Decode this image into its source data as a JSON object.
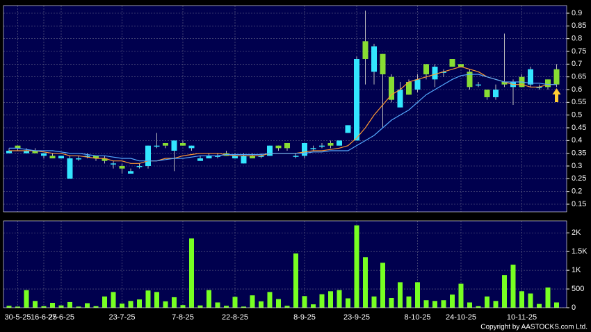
{
  "chart_data": {
    "type": "candlestick",
    "categories": [
      null,
      "30-5-25",
      null,
      null,
      "16-6-25",
      null,
      "27-6-25",
      null,
      null,
      null,
      null,
      null,
      null,
      "23-7-25",
      null,
      null,
      null,
      null,
      null,
      null,
      "7-8-25",
      null,
      null,
      null,
      null,
      null,
      "22-8-25",
      null,
      null,
      null,
      null,
      null,
      null,
      null,
      "8-9-25",
      null,
      null,
      null,
      null,
      null,
      "23-9-25",
      null,
      null,
      null,
      null,
      null,
      null,
      "8-10-25",
      null,
      null,
      null,
      null,
      "24-10-25",
      null,
      null,
      null,
      null,
      null,
      null,
      "10-11-25",
      null,
      null,
      null,
      null
    ],
    "open": [
      0.35,
      0.38,
      0.35,
      0.36,
      0.34,
      0.34,
      0.33,
      0.25,
      0.33,
      0.34,
      0.34,
      0.33,
      0.31,
      0.3,
      0.27,
      0.3,
      0.3,
      0.38,
      0.39,
      0.36,
      0.39,
      0.37,
      0.32,
      0.33,
      0.34,
      0.35,
      0.33,
      0.31,
      0.34,
      0.34,
      0.34,
      0.38,
      0.39,
      0.34,
      0.34,
      0.37,
      0.38,
      0.39,
      0.38,
      0.43,
      0.4,
      0.79,
      0.67,
      0.74,
      0.65,
      0.53,
      0.63,
      0.6,
      0.7,
      0.64,
      0.67,
      0.72,
      0.7,
      0.67,
      0.62,
      0.6,
      0.57,
      0.63,
      0.61,
      0.65,
      0.62,
      0.61,
      0.64,
      0.68
    ],
    "high": [
      0.37,
      0.38,
      0.37,
      0.37,
      0.35,
      0.35,
      0.34,
      0.34,
      0.34,
      0.35,
      0.34,
      0.34,
      0.32,
      0.31,
      0.29,
      0.31,
      0.38,
      0.43,
      0.39,
      0.4,
      0.4,
      0.38,
      0.34,
      0.35,
      0.35,
      0.36,
      0.35,
      0.35,
      0.35,
      0.35,
      0.38,
      0.38,
      0.39,
      0.35,
      0.39,
      0.38,
      0.39,
      0.4,
      0.4,
      0.46,
      0.73,
      0.91,
      0.78,
      0.74,
      0.66,
      0.63,
      0.64,
      0.66,
      0.7,
      0.7,
      0.68,
      0.72,
      0.7,
      0.68,
      0.63,
      0.6,
      0.62,
      0.82,
      0.64,
      0.66,
      0.69,
      0.62,
      0.64,
      0.7
    ],
    "low": [
      0.35,
      0.36,
      0.35,
      0.35,
      0.33,
      0.33,
      0.33,
      0.25,
      0.32,
      0.33,
      0.32,
      0.31,
      0.29,
      0.27,
      0.27,
      0.29,
      0.29,
      0.37,
      0.37,
      0.28,
      0.38,
      0.36,
      0.32,
      0.33,
      0.33,
      0.34,
      0.33,
      0.31,
      0.33,
      0.33,
      0.34,
      0.36,
      0.36,
      0.33,
      0.33,
      0.36,
      0.37,
      0.37,
      0.38,
      0.43,
      0.4,
      0.62,
      0.62,
      0.45,
      0.55,
      0.53,
      0.58,
      0.59,
      0.64,
      0.61,
      0.65,
      0.69,
      0.69,
      0.6,
      0.61,
      0.56,
      0.56,
      0.61,
      0.54,
      0.61,
      0.61,
      0.6,
      0.6,
      0.61
    ],
    "close": [
      0.36,
      0.37,
      0.36,
      0.35,
      0.35,
      0.33,
      0.34,
      0.33,
      0.33,
      0.34,
      0.33,
      0.32,
      0.31,
      0.29,
      0.28,
      0.3,
      0.38,
      0.38,
      0.38,
      0.4,
      0.38,
      0.38,
      0.33,
      0.34,
      0.34,
      0.34,
      0.34,
      0.34,
      0.33,
      0.34,
      0.38,
      0.37,
      0.37,
      0.34,
      0.39,
      0.37,
      0.38,
      0.38,
      0.4,
      0.46,
      0.72,
      0.72,
      0.77,
      0.66,
      0.56,
      0.6,
      0.58,
      0.64,
      0.66,
      0.69,
      0.67,
      0.69,
      0.69,
      0.61,
      0.62,
      0.57,
      0.6,
      0.62,
      0.63,
      0.61,
      0.68,
      0.61,
      0.61,
      0.62
    ],
    "volume": [
      50,
      30,
      470,
      180,
      40,
      130,
      60,
      150,
      30,
      120,
      40,
      300,
      420,
      110,
      180,
      220,
      460,
      420,
      170,
      280,
      70,
      1850,
      60,
      470,
      140,
      50,
      290,
      30,
      330,
      170,
      420,
      230,
      50,
      1450,
      310,
      90,
      360,
      440,
      470,
      250,
      2200,
      1350,
      300,
      1200,
      260,
      680,
      300,
      680,
      200,
      180,
      200,
      350,
      640,
      140,
      40,
      300,
      180,
      870,
      1150,
      440,
      380,
      100,
      540,
      140
    ],
    "series": [
      {
        "color": "#ff9933",
        "values": [
          0.36,
          0.36,
          0.36,
          0.36,
          0.355,
          0.35,
          0.35,
          0.34,
          0.34,
          0.335,
          0.33,
          0.33,
          0.32,
          0.32,
          0.31,
          0.31,
          0.32,
          0.32,
          0.33,
          0.33,
          0.34,
          0.345,
          0.35,
          0.35,
          0.35,
          0.345,
          0.34,
          0.34,
          0.34,
          0.34,
          0.35,
          0.35,
          0.35,
          0.35,
          0.355,
          0.36,
          0.36,
          0.365,
          0.37,
          0.38,
          0.41,
          0.45,
          0.5,
          0.54,
          0.58,
          0.6,
          0.63,
          0.64,
          0.65,
          0.66,
          0.67,
          0.68,
          0.69,
          0.68,
          0.67,
          0.65,
          0.64,
          0.63,
          0.62,
          0.62,
          0.61,
          0.61,
          0.62,
          0.62
        ]
      },
      {
        "color": "#55aaff",
        "values": [
          0.37,
          0.37,
          0.365,
          0.36,
          0.36,
          0.36,
          0.355,
          0.35,
          0.35,
          0.345,
          0.34,
          0.34,
          0.335,
          0.33,
          0.33,
          0.32,
          0.32,
          0.32,
          0.325,
          0.33,
          0.33,
          0.335,
          0.34,
          0.34,
          0.34,
          0.345,
          0.345,
          0.345,
          0.345,
          0.345,
          0.35,
          0.35,
          0.35,
          0.35,
          0.35,
          0.355,
          0.355,
          0.36,
          0.36,
          0.36,
          0.38,
          0.4,
          0.42,
          0.45,
          0.48,
          0.5,
          0.52,
          0.55,
          0.58,
          0.6,
          0.62,
          0.64,
          0.655,
          0.66,
          0.66,
          0.65,
          0.64,
          0.63,
          0.63,
          0.63,
          0.625,
          0.625,
          0.62,
          0.62
        ]
      }
    ],
    "up_color": "#33e6ff",
    "down_color": "#88dd33",
    "volume_color": "#77ff22",
    "ylim": [
      0.12,
      0.93
    ],
    "yticks": [
      0.15,
      0.2,
      0.25,
      0.3,
      0.35,
      0.4,
      0.45,
      0.5,
      0.55,
      0.6,
      0.65,
      0.7,
      0.75,
      0.8,
      0.85,
      0.9
    ],
    "y2lim": [
      0,
      2320
    ],
    "y2ticks": [
      0,
      500,
      {
        "value": 1000,
        "label": "1K"
      },
      {
        "value": 1500,
        "label": "1.5K"
      },
      {
        "value": 2000,
        "label": "2K"
      }
    ],
    "grid": true,
    "copyright": "Copyright by AASTOCKS.com Ltd."
  }
}
